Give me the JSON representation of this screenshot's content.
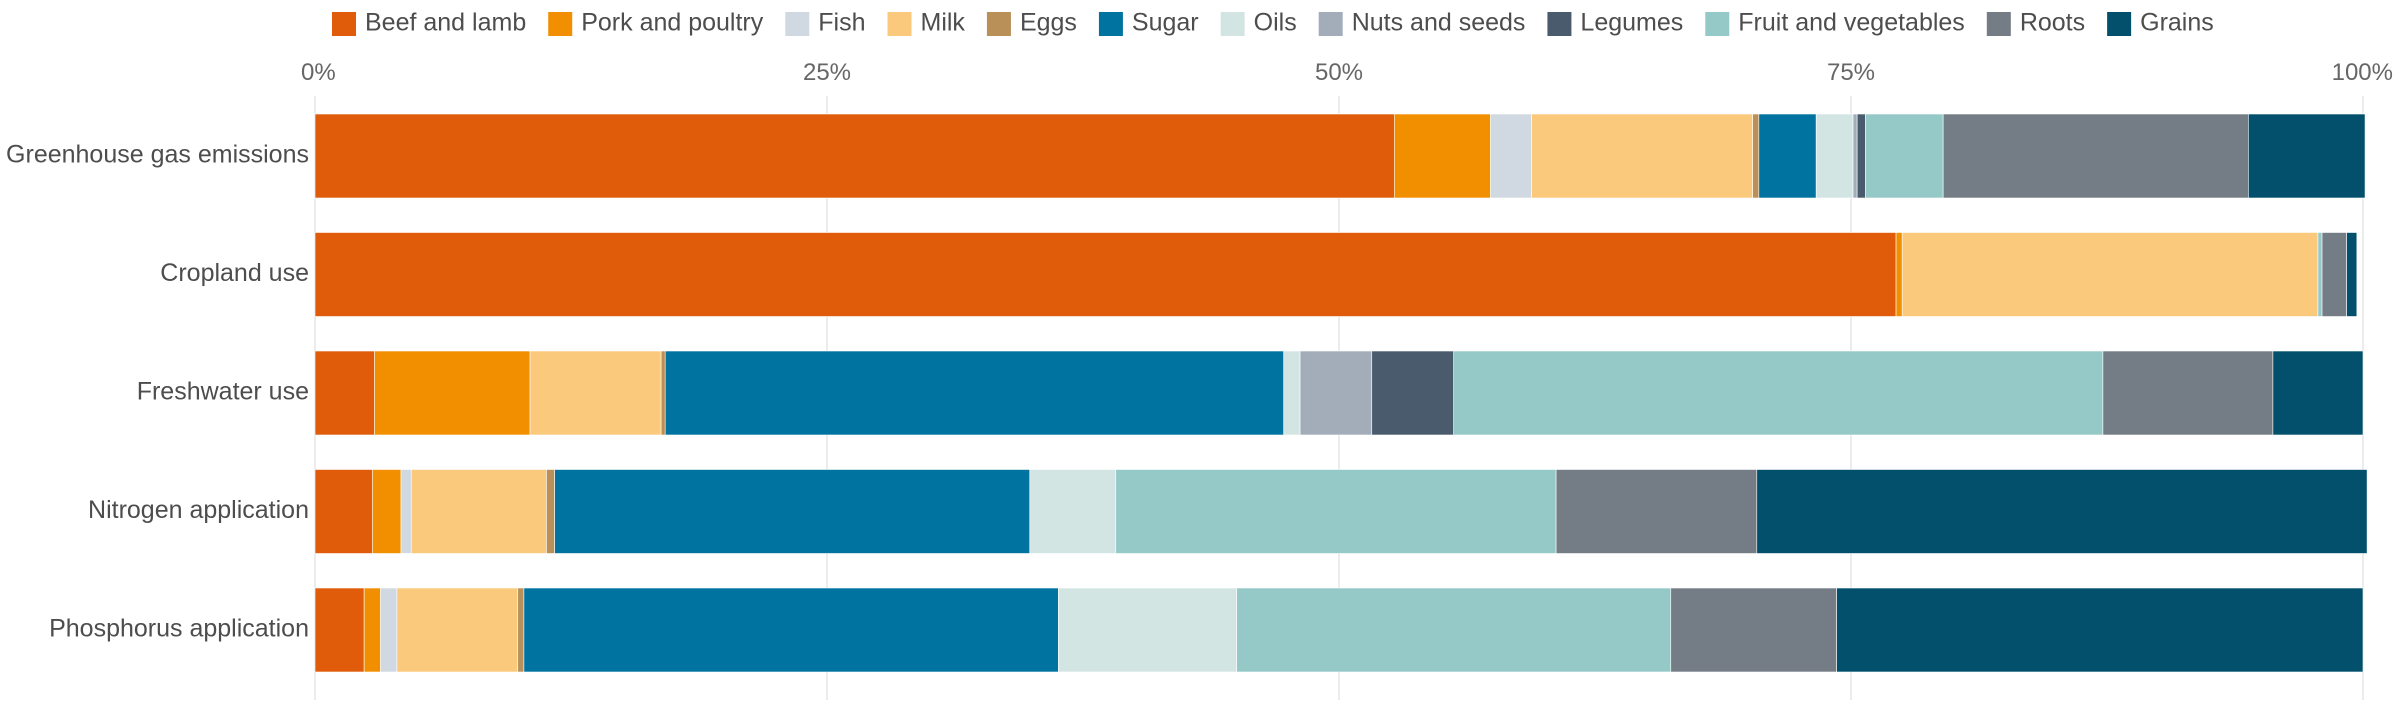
{
  "chart_data": {
    "type": "bar",
    "orientation": "horizontal",
    "stacked": true,
    "normalized": true,
    "xlim": [
      0,
      100
    ],
    "x_ticks": [
      0,
      25,
      50,
      75,
      100
    ],
    "x_tick_labels": [
      "0%",
      "25%",
      "50%",
      "75%",
      "100%"
    ],
    "x_axis_position": "top",
    "grid": true,
    "legend_position": "top",
    "categories": [
      "Greenhouse gas emissions",
      "Cropland use",
      "Freshwater use",
      "Nitrogen application",
      "Phosphorus application"
    ],
    "series": [
      {
        "name": "Beef and lamb",
        "color": "#e05c0a",
        "values": [
          52.7,
          77.2,
          2.9,
          2.8,
          2.4
        ]
      },
      {
        "name": "Pork and poultry",
        "color": "#f18f00",
        "values": [
          4.7,
          0.3,
          7.6,
          1.4,
          0.8
        ]
      },
      {
        "name": "Fish",
        "color": "#d0d9e2",
        "values": [
          2.0,
          0.0,
          0.0,
          0.5,
          0.8
        ]
      },
      {
        "name": "Milk",
        "color": "#fbc97b",
        "values": [
          10.8,
          20.3,
          6.4,
          6.6,
          5.9
        ]
      },
      {
        "name": "Eggs",
        "color": "#b89058",
        "values": [
          0.3,
          0.0,
          0.2,
          0.4,
          0.3
        ]
      },
      {
        "name": "Sugar",
        "color": "#0073a0",
        "values": [
          2.8,
          0.0,
          30.2,
          23.2,
          26.1
        ]
      },
      {
        "name": "Oils",
        "color": "#d3e5e3",
        "values": [
          1.8,
          0.0,
          0.8,
          4.2,
          8.7
        ]
      },
      {
        "name": "Nuts and seeds",
        "color": "#a2adb9",
        "values": [
          0.2,
          0.0,
          3.5,
          0.0,
          0.0
        ]
      },
      {
        "name": "Legumes",
        "color": "#495b6d",
        "values": [
          0.4,
          0.0,
          4.0,
          0.0,
          0.0
        ]
      },
      {
        "name": "Fruit and vegetables",
        "color": "#95c9c8",
        "values": [
          3.8,
          0.2,
          31.7,
          21.5,
          21.2
        ]
      },
      {
        "name": "Roots",
        "color": "#747c86",
        "values": [
          14.9,
          1.2,
          8.3,
          9.8,
          8.1
        ]
      },
      {
        "name": "Grains",
        "color": "#02506c",
        "values": [
          5.7,
          0.5,
          4.4,
          29.8,
          25.7
        ]
      }
    ]
  }
}
